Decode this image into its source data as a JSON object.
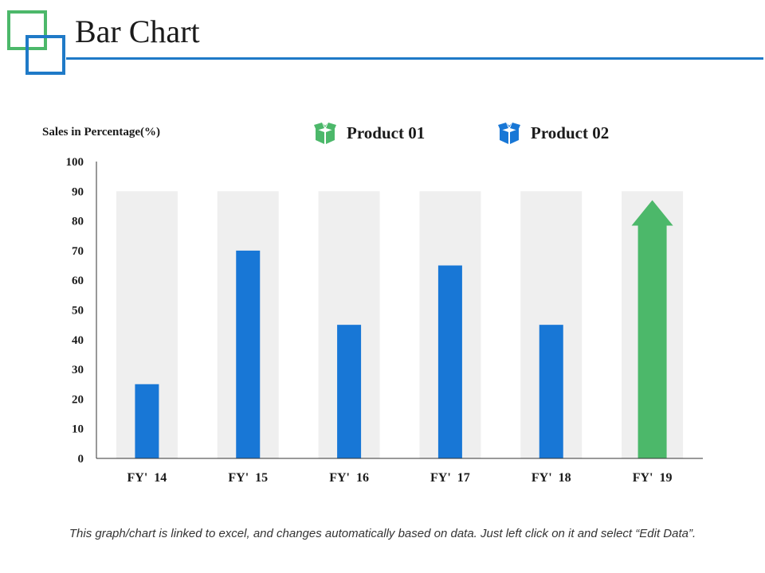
{
  "page": {
    "title": "Bar Chart",
    "footnote": "This graph/chart is linked to excel, and changes automatically based on data. Just left click on it and select “Edit Data”."
  },
  "legend": [
    {
      "label": "Product 01",
      "color": "#4cb86a",
      "icon": "open-box-icon"
    },
    {
      "label": "Product 02",
      "color": "#1877d6",
      "icon": "open-box-icon"
    }
  ],
  "colors": {
    "title_rule": "#1f7ac7",
    "logo_green": "#4cb86a",
    "logo_blue": "#1f7ac7",
    "background_bar": "#efefef",
    "value_bar": "#1877d6",
    "arrow": "#4cb86a",
    "axis": "#333333"
  },
  "chart_data": {
    "type": "bar",
    "ylabel": "Sales in Percentage(%)",
    "xlabel": "",
    "ylim": [
      0,
      100
    ],
    "yticks": [
      0,
      10,
      20,
      30,
      40,
      50,
      60,
      70,
      80,
      90,
      100
    ],
    "categories": [
      "FY'  14",
      "FY'  15",
      "FY'  16",
      "FY'  17",
      "FY'  18",
      "FY'  19"
    ],
    "series": [
      {
        "name": "Product 01",
        "values": [
          90,
          90,
          90,
          90,
          90,
          90
        ]
      },
      {
        "name": "Product 02",
        "values": [
          25,
          70,
          45,
          65,
          45,
          87
        ]
      }
    ],
    "last_bar_style": "up-arrow",
    "grid": false
  }
}
